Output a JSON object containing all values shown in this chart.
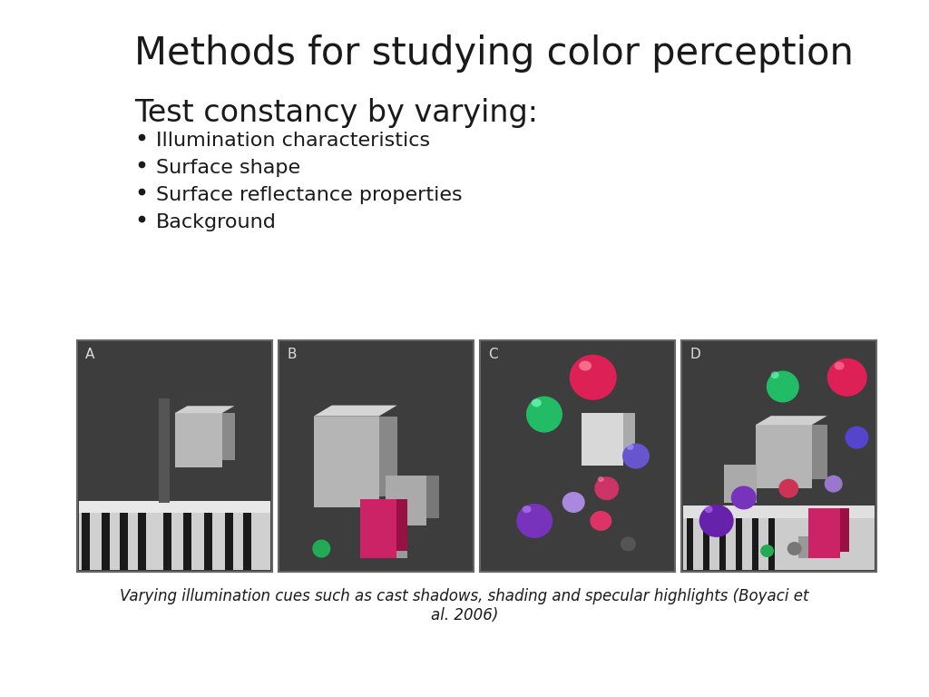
{
  "title": "Methods for studying color perception",
  "subtitle": "Test constancy by varying:",
  "bullets": [
    "Illumination characteristics",
    "Surface shape",
    "Surface reflectance properties",
    "Background"
  ],
  "caption": "Varying illumination cues such as cast shadows, shading and specular highlights (Boyaci et\nal. 2006)",
  "bg_color": "#ffffff",
  "title_color": "#1a1a1a",
  "subtitle_color": "#1a1a1a",
  "bullet_color": "#1a1a1a",
  "caption_color": "#1a1a1a",
  "panel_bg": "#3d3d3d",
  "panel_border": "#666666",
  "title_fontsize": 30,
  "subtitle_fontsize": 24,
  "bullet_fontsize": 16,
  "caption_fontsize": 12,
  "panel_labels": [
    "A",
    "B",
    "C",
    "D"
  ],
  "panel_label_color": "#dddddd"
}
